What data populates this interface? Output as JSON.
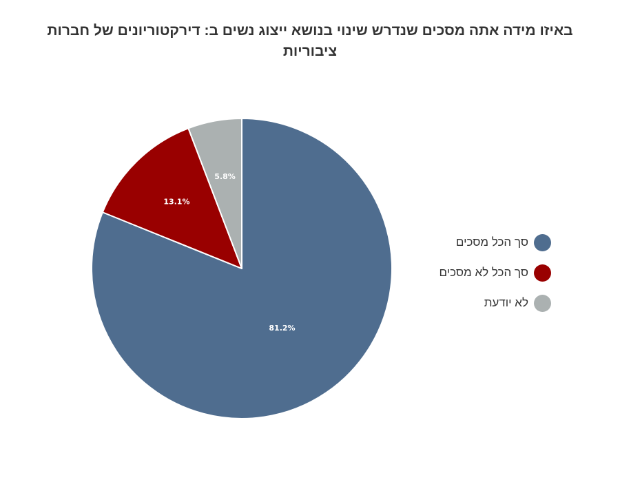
{
  "chart_data": {
    "type": "pie",
    "title": "באיזו מידה אתה מסכים שנדרש שינוי בנושא ייצוג נשים ב: דירקטוריונים של חברות ציבוריות",
    "categories": [
      "סך הכל מסכים",
      "סך הכל לא מסכים",
      "לא יודעת"
    ],
    "values": [
      81.2,
      13.1,
      5.8
    ],
    "value_labels": [
      "81.2%",
      "13.1%",
      "5.8%"
    ],
    "colors": [
      "#4f6d8f",
      "#990000",
      "#abb1b1"
    ],
    "legend_position": "right",
    "start_angle": "top",
    "direction": "clockwise"
  }
}
